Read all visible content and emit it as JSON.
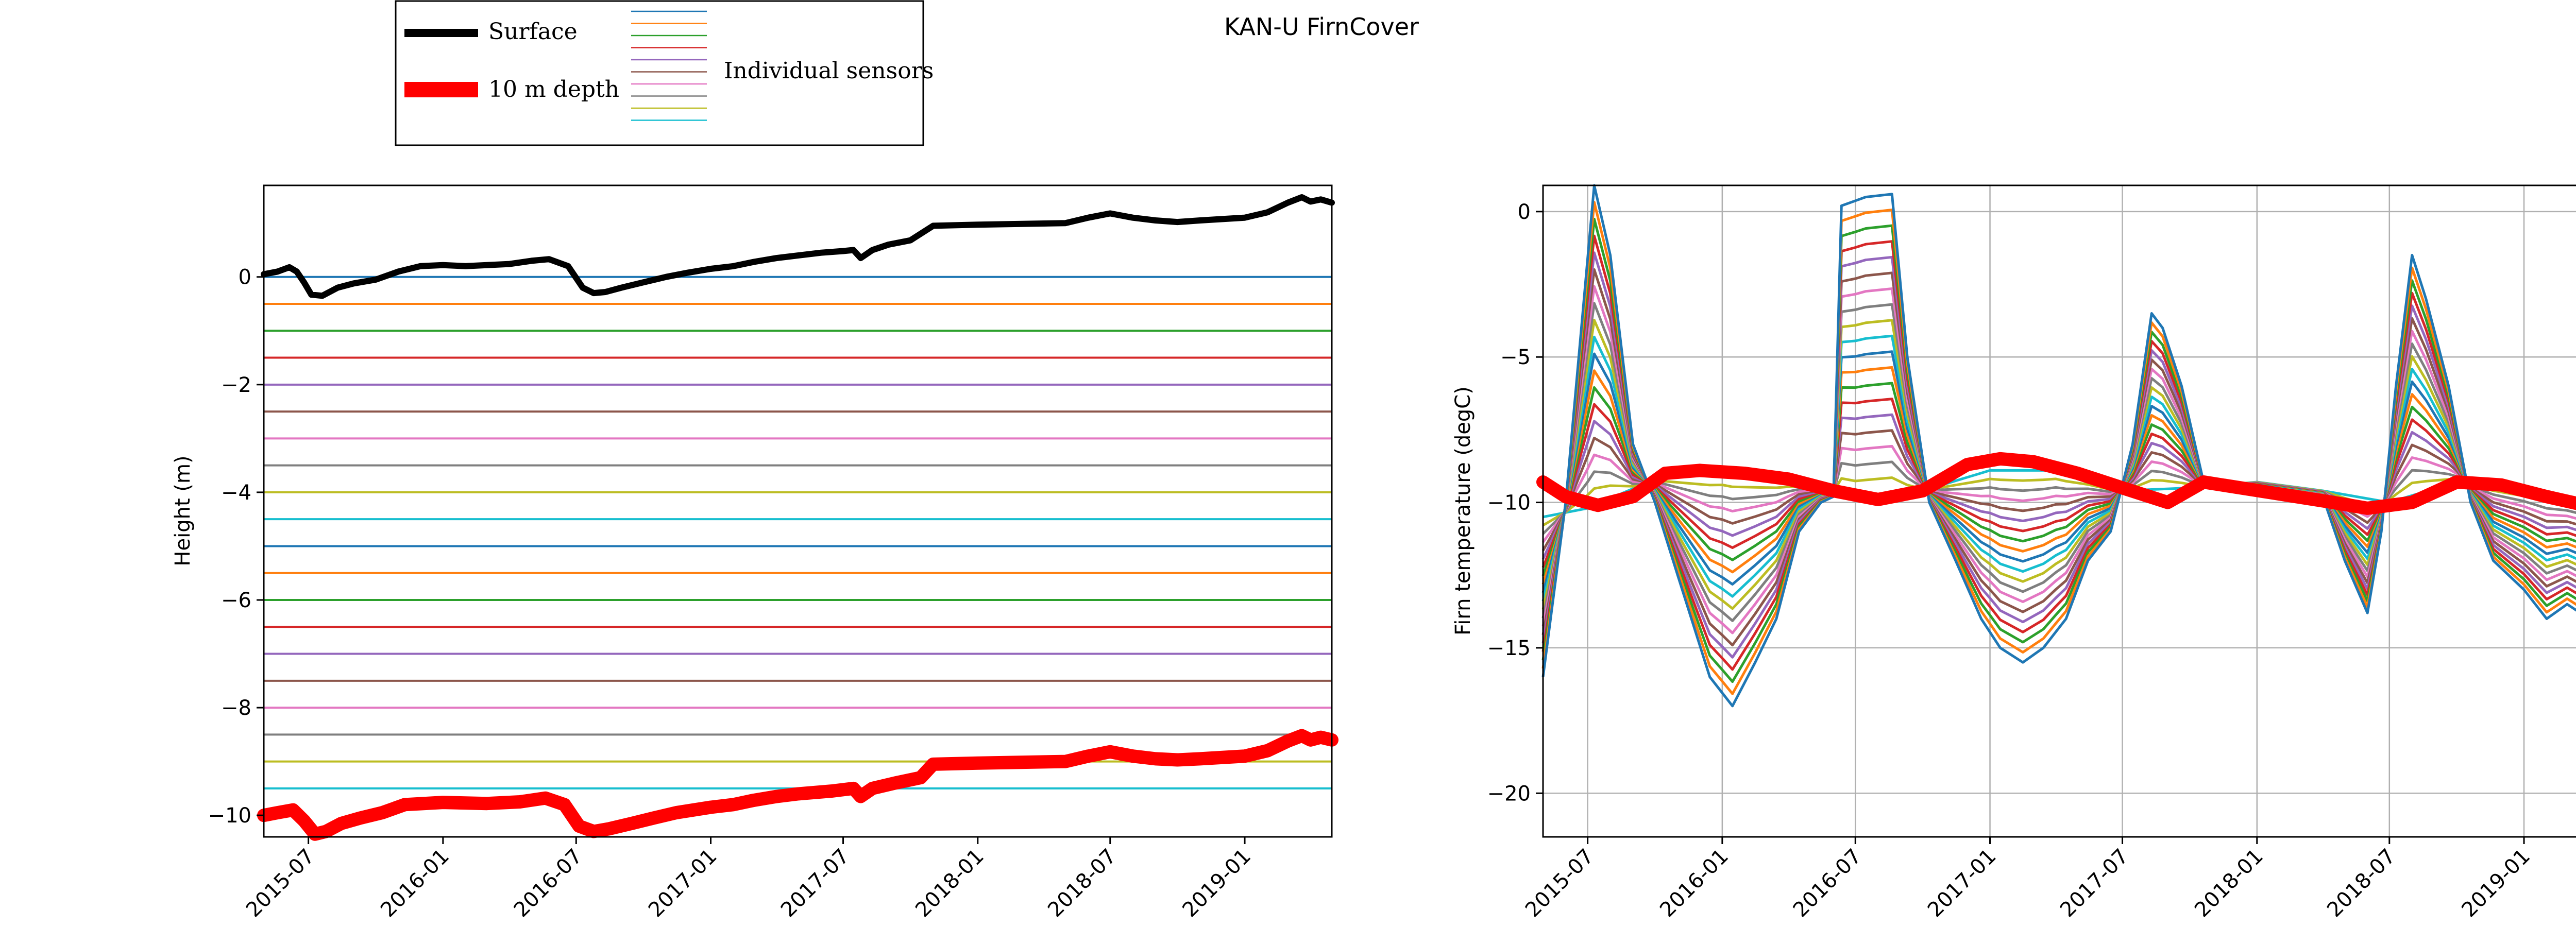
{
  "figure_title": "KAN-U FirnCover",
  "legend": {
    "entries": [
      {
        "label": "Surface",
        "color": "#000000"
      },
      {
        "label": "10 m depth",
        "color": "#ff0000"
      },
      {
        "label": "Individual sensors",
        "colors": [
          "#1f77b4",
          "#ff7f0e",
          "#2ca02c",
          "#d62728",
          "#9467bd",
          "#8c564b",
          "#e377c2",
          "#7f7f7f",
          "#bcbd22",
          "#17becf"
        ]
      }
    ],
    "placement": "top-left, above the left panel"
  },
  "chart_data": [
    {
      "type": "line",
      "title": "",
      "xlabel": "",
      "ylabel": "Height (m)",
      "x_tick_labels": [
        "2015-07",
        "2016-01",
        "2016-07",
        "2017-01",
        "2017-07",
        "2018-01",
        "2018-07",
        "2019-01"
      ],
      "x_tick_dates": [
        "2015-07-01",
        "2016-01-01",
        "2016-07-01",
        "2017-01-01",
        "2017-07-01",
        "2018-01-01",
        "2018-07-01",
        "2019-01-01"
      ],
      "xlim": [
        "2015-05-01",
        "2019-04-30"
      ],
      "y_ticks": [
        0,
        -2,
        -4,
        -6,
        -8,
        -10
      ],
      "ylim": [
        -10.4,
        1.7
      ],
      "grid": false,
      "series": [
        {
          "name": "Surface",
          "color": "#000000",
          "points": [
            [
              "2015-05-01",
              0.05
            ],
            [
              "2015-05-20",
              0.1
            ],
            [
              "2015-06-05",
              0.18
            ],
            [
              "2015-06-15",
              0.1
            ],
            [
              "2015-06-25",
              -0.1
            ],
            [
              "2015-07-05",
              -0.33
            ],
            [
              "2015-07-20",
              -0.35
            ],
            [
              "2015-08-10",
              -0.2
            ],
            [
              "2015-09-01",
              -0.12
            ],
            [
              "2015-10-01",
              -0.05
            ],
            [
              "2015-11-01",
              0.1
            ],
            [
              "2015-12-01",
              0.2
            ],
            [
              "2016-01-01",
              0.22
            ],
            [
              "2016-02-01",
              0.2
            ],
            [
              "2016-03-01",
              0.22
            ],
            [
              "2016-04-01",
              0.24
            ],
            [
              "2016-05-01",
              0.3
            ],
            [
              "2016-05-25",
              0.33
            ],
            [
              "2016-06-20",
              0.2
            ],
            [
              "2016-07-10",
              -0.2
            ],
            [
              "2016-07-25",
              -0.3
            ],
            [
              "2016-08-10",
              -0.28
            ],
            [
              "2016-09-01",
              -0.2
            ],
            [
              "2016-10-01",
              -0.1
            ],
            [
              "2016-11-01",
              0.0
            ],
            [
              "2016-12-01",
              0.08
            ],
            [
              "2017-01-01",
              0.15
            ],
            [
              "2017-02-01",
              0.2
            ],
            [
              "2017-03-01",
              0.28
            ],
            [
              "2017-04-01",
              0.35
            ],
            [
              "2017-05-01",
              0.4
            ],
            [
              "2017-06-01",
              0.45
            ],
            [
              "2017-07-01",
              0.48
            ],
            [
              "2017-07-15",
              0.5
            ],
            [
              "2017-07-25",
              0.35
            ],
            [
              "2017-08-10",
              0.5
            ],
            [
              "2017-09-01",
              0.6
            ],
            [
              "2017-10-01",
              0.68
            ],
            [
              "2017-11-01",
              0.95
            ],
            [
              "2018-01-01",
              0.97
            ],
            [
              "2018-05-01",
              1.0
            ],
            [
              "2018-06-01",
              1.1
            ],
            [
              "2018-07-01",
              1.18
            ],
            [
              "2018-08-01",
              1.1
            ],
            [
              "2018-09-01",
              1.05
            ],
            [
              "2018-10-01",
              1.02
            ],
            [
              "2018-11-01",
              1.05
            ],
            [
              "2019-01-01",
              1.1
            ],
            [
              "2019-02-01",
              1.2
            ],
            [
              "2019-03-01",
              1.38
            ],
            [
              "2019-03-20",
              1.48
            ],
            [
              "2019-04-01",
              1.4
            ],
            [
              "2019-04-15",
              1.44
            ],
            [
              "2019-04-30",
              1.38
            ]
          ]
        },
        {
          "name": "10 m depth",
          "color": "#ff0000",
          "points": [
            [
              "2015-05-01",
              -10.0
            ],
            [
              "2015-05-20",
              -9.95
            ],
            [
              "2015-06-10",
              -9.9
            ],
            [
              "2015-06-25",
              -10.1
            ],
            [
              "2015-07-10",
              -10.35
            ],
            [
              "2015-07-25",
              -10.3
            ],
            [
              "2015-08-15",
              -10.15
            ],
            [
              "2015-09-10",
              -10.05
            ],
            [
              "2015-10-10",
              -9.95
            ],
            [
              "2015-11-10",
              -9.8
            ],
            [
              "2016-01-01",
              -9.76
            ],
            [
              "2016-03-01",
              -9.78
            ],
            [
              "2016-04-15",
              -9.75
            ],
            [
              "2016-05-20",
              -9.68
            ],
            [
              "2016-06-15",
              -9.8
            ],
            [
              "2016-07-05",
              -10.2
            ],
            [
              "2016-07-25",
              -10.3
            ],
            [
              "2016-08-15",
              -10.25
            ],
            [
              "2016-09-15",
              -10.15
            ],
            [
              "2016-10-15",
              -10.05
            ],
            [
              "2016-11-15",
              -9.95
            ],
            [
              "2017-01-01",
              -9.85
            ],
            [
              "2017-02-01",
              -9.8
            ],
            [
              "2017-03-01",
              -9.72
            ],
            [
              "2017-04-01",
              -9.65
            ],
            [
              "2017-05-01",
              -9.6
            ],
            [
              "2017-06-15",
              -9.55
            ],
            [
              "2017-07-15",
              -9.5
            ],
            [
              "2017-07-25",
              -9.65
            ],
            [
              "2017-08-10",
              -9.5
            ],
            [
              "2017-09-10",
              -9.4
            ],
            [
              "2017-10-15",
              -9.3
            ],
            [
              "2017-11-01",
              -9.05
            ],
            [
              "2018-01-01",
              -9.03
            ],
            [
              "2018-05-01",
              -9.0
            ],
            [
              "2018-06-01",
              -8.9
            ],
            [
              "2018-07-01",
              -8.82
            ],
            [
              "2018-08-01",
              -8.9
            ],
            [
              "2018-09-01",
              -8.95
            ],
            [
              "2018-10-01",
              -8.97
            ],
            [
              "2018-11-01",
              -8.95
            ],
            [
              "2019-01-01",
              -8.9
            ],
            [
              "2019-02-01",
              -8.8
            ],
            [
              "2019-03-01",
              -8.62
            ],
            [
              "2019-03-20",
              -8.52
            ],
            [
              "2019-04-01",
              -8.6
            ],
            [
              "2019-04-15",
              -8.55
            ],
            [
              "2019-04-30",
              -8.6
            ]
          ]
        }
      ],
      "sensor_lines": {
        "values": [
          0,
          -0.5,
          -1,
          -1.5,
          -2,
          -2.5,
          -3,
          -3.5,
          -4,
          -4.5,
          -5,
          -5.5,
          -6,
          -6.5,
          -7,
          -7.5,
          -8,
          -8.5,
          -9,
          -9.5
        ],
        "colors": [
          "#1f77b4",
          "#ff7f0e",
          "#2ca02c",
          "#d62728",
          "#9467bd",
          "#8c564b",
          "#e377c2",
          "#7f7f7f",
          "#bcbd22",
          "#17becf"
        ]
      }
    },
    {
      "type": "line",
      "title": "",
      "xlabel": "",
      "ylabel": "Firn temperature (degC)",
      "x_tick_labels": [
        "2015-07",
        "2016-01",
        "2016-07",
        "2017-01",
        "2017-07",
        "2018-01",
        "2018-07",
        "2019-01"
      ],
      "x_tick_dates": [
        "2015-07-01",
        "2016-01-01",
        "2016-07-01",
        "2017-01-01",
        "2017-07-01",
        "2018-01-01",
        "2018-07-01",
        "2019-01-01"
      ],
      "xlim": [
        "2015-05-01",
        "2019-04-30"
      ],
      "y_ticks": [
        0,
        -5,
        -10,
        -15,
        -20
      ],
      "ylim": [
        -21.5,
        0.9
      ],
      "grid": true,
      "sensor_count": 20,
      "series": [
        {
          "name": "Individual sensors (shallowest)",
          "color": "#1f77b4",
          "points": [
            [
              "2015-05-01",
              -16
            ],
            [
              "2015-06-01",
              -10
            ],
            [
              "2015-07-10",
              0.9
            ],
            [
              "2015-08-01",
              -1.5
            ],
            [
              "2015-09-01",
              -8
            ],
            [
              "2015-10-01",
              -10
            ],
            [
              "2015-11-01",
              -12.5
            ],
            [
              "2015-12-15",
              -16
            ],
            [
              "2016-01-15",
              -17
            ],
            [
              "2016-02-15",
              -15.5
            ],
            [
              "2016-03-15",
              -14
            ],
            [
              "2016-04-15",
              -11
            ],
            [
              "2016-05-15",
              -10
            ],
            [
              "2016-06-01",
              -9.8
            ],
            [
              "2016-06-12",
              0.2
            ],
            [
              "2016-07-15",
              0.5
            ],
            [
              "2016-08-20",
              0.6
            ],
            [
              "2016-09-10",
              -5
            ],
            [
              "2016-10-10",
              -10
            ],
            [
              "2016-11-15",
              -12
            ],
            [
              "2016-12-20",
              -14
            ],
            [
              "2017-01-15",
              -15
            ],
            [
              "2017-02-15",
              -15.5
            ],
            [
              "2017-03-15",
              -15
            ],
            [
              "2017-04-15",
              -14
            ],
            [
              "2017-05-15",
              -12
            ],
            [
              "2017-06-15",
              -11
            ],
            [
              "2017-07-15",
              -8
            ],
            [
              "2017-08-10",
              -3.5
            ],
            [
              "2017-08-25",
              -4
            ],
            [
              "2017-09-20",
              -6
            ],
            [
              "2017-10-20",
              -9.3
            ],
            [
              "2018-01-01",
              -9.5
            ],
            [
              "2018-04-01",
              -9.8
            ],
            [
              "2018-05-01",
              -12
            ],
            [
              "2018-06-01",
              -13.8
            ],
            [
              "2018-06-20",
              -11
            ],
            [
              "2018-07-10",
              -6
            ],
            [
              "2018-08-01",
              -1.5
            ],
            [
              "2018-08-20",
              -3
            ],
            [
              "2018-09-20",
              -6
            ],
            [
              "2018-10-20",
              -10
            ],
            [
              "2018-11-20",
              -12
            ],
            [
              "2019-01-01",
              -13
            ],
            [
              "2019-02-01",
              -14
            ],
            [
              "2019-03-01",
              -13.5
            ],
            [
              "2019-04-30",
              -14.5
            ]
          ]
        },
        {
          "name": "Individual sensors (deepest)",
          "color": "#17becf",
          "points": [
            [
              "2015-05-01",
              -10.5
            ],
            [
              "2015-07-01",
              -10.2
            ],
            [
              "2015-10-01",
              -9.2
            ],
            [
              "2016-01-01",
              -9.0
            ],
            [
              "2016-04-01",
              -9.3
            ],
            [
              "2016-07-01",
              -9.8
            ],
            [
              "2016-10-01",
              -9.6
            ],
            [
              "2017-01-01",
              -8.9
            ],
            [
              "2017-04-01",
              -8.9
            ],
            [
              "2017-07-01",
              -9.6
            ],
            [
              "2017-10-01",
              -9.5
            ],
            [
              "2018-01-01",
              -9.3
            ],
            [
              "2018-04-01",
              -9.6
            ],
            [
              "2018-07-01",
              -10.0
            ],
            [
              "2018-10-01",
              -9.3
            ],
            [
              "2019-01-01",
              -9.6
            ],
            [
              "2019-04-30",
              -10.2
            ]
          ]
        },
        {
          "name": "10 m depth",
          "color": "#ff0000",
          "points": [
            [
              "2015-05-01",
              -9.3
            ],
            [
              "2015-06-01",
              -9.8
            ],
            [
              "2015-07-15",
              -10.1
            ],
            [
              "2015-09-01",
              -9.8
            ],
            [
              "2015-10-15",
              -9.0
            ],
            [
              "2015-12-01",
              -8.9
            ],
            [
              "2016-02-01",
              -9.0
            ],
            [
              "2016-04-01",
              -9.2
            ],
            [
              "2016-06-01",
              -9.6
            ],
            [
              "2016-08-01",
              -9.9
            ],
            [
              "2016-10-01",
              -9.6
            ],
            [
              "2016-12-01",
              -8.7
            ],
            [
              "2017-01-15",
              -8.5
            ],
            [
              "2017-03-01",
              -8.6
            ],
            [
              "2017-05-01",
              -9.0
            ],
            [
              "2017-07-01",
              -9.5
            ],
            [
              "2017-09-01",
              -10.0
            ],
            [
              "2017-10-20",
              -9.3
            ],
            [
              "2018-04-15",
              -10.0
            ],
            [
              "2018-06-01",
              -10.2
            ],
            [
              "2018-08-01",
              -10.0
            ],
            [
              "2018-10-01",
              -9.3
            ],
            [
              "2018-12-01",
              -9.4
            ],
            [
              "2019-02-01",
              -9.8
            ],
            [
              "2019-04-30",
              -10.3
            ]
          ]
        }
      ]
    }
  ]
}
